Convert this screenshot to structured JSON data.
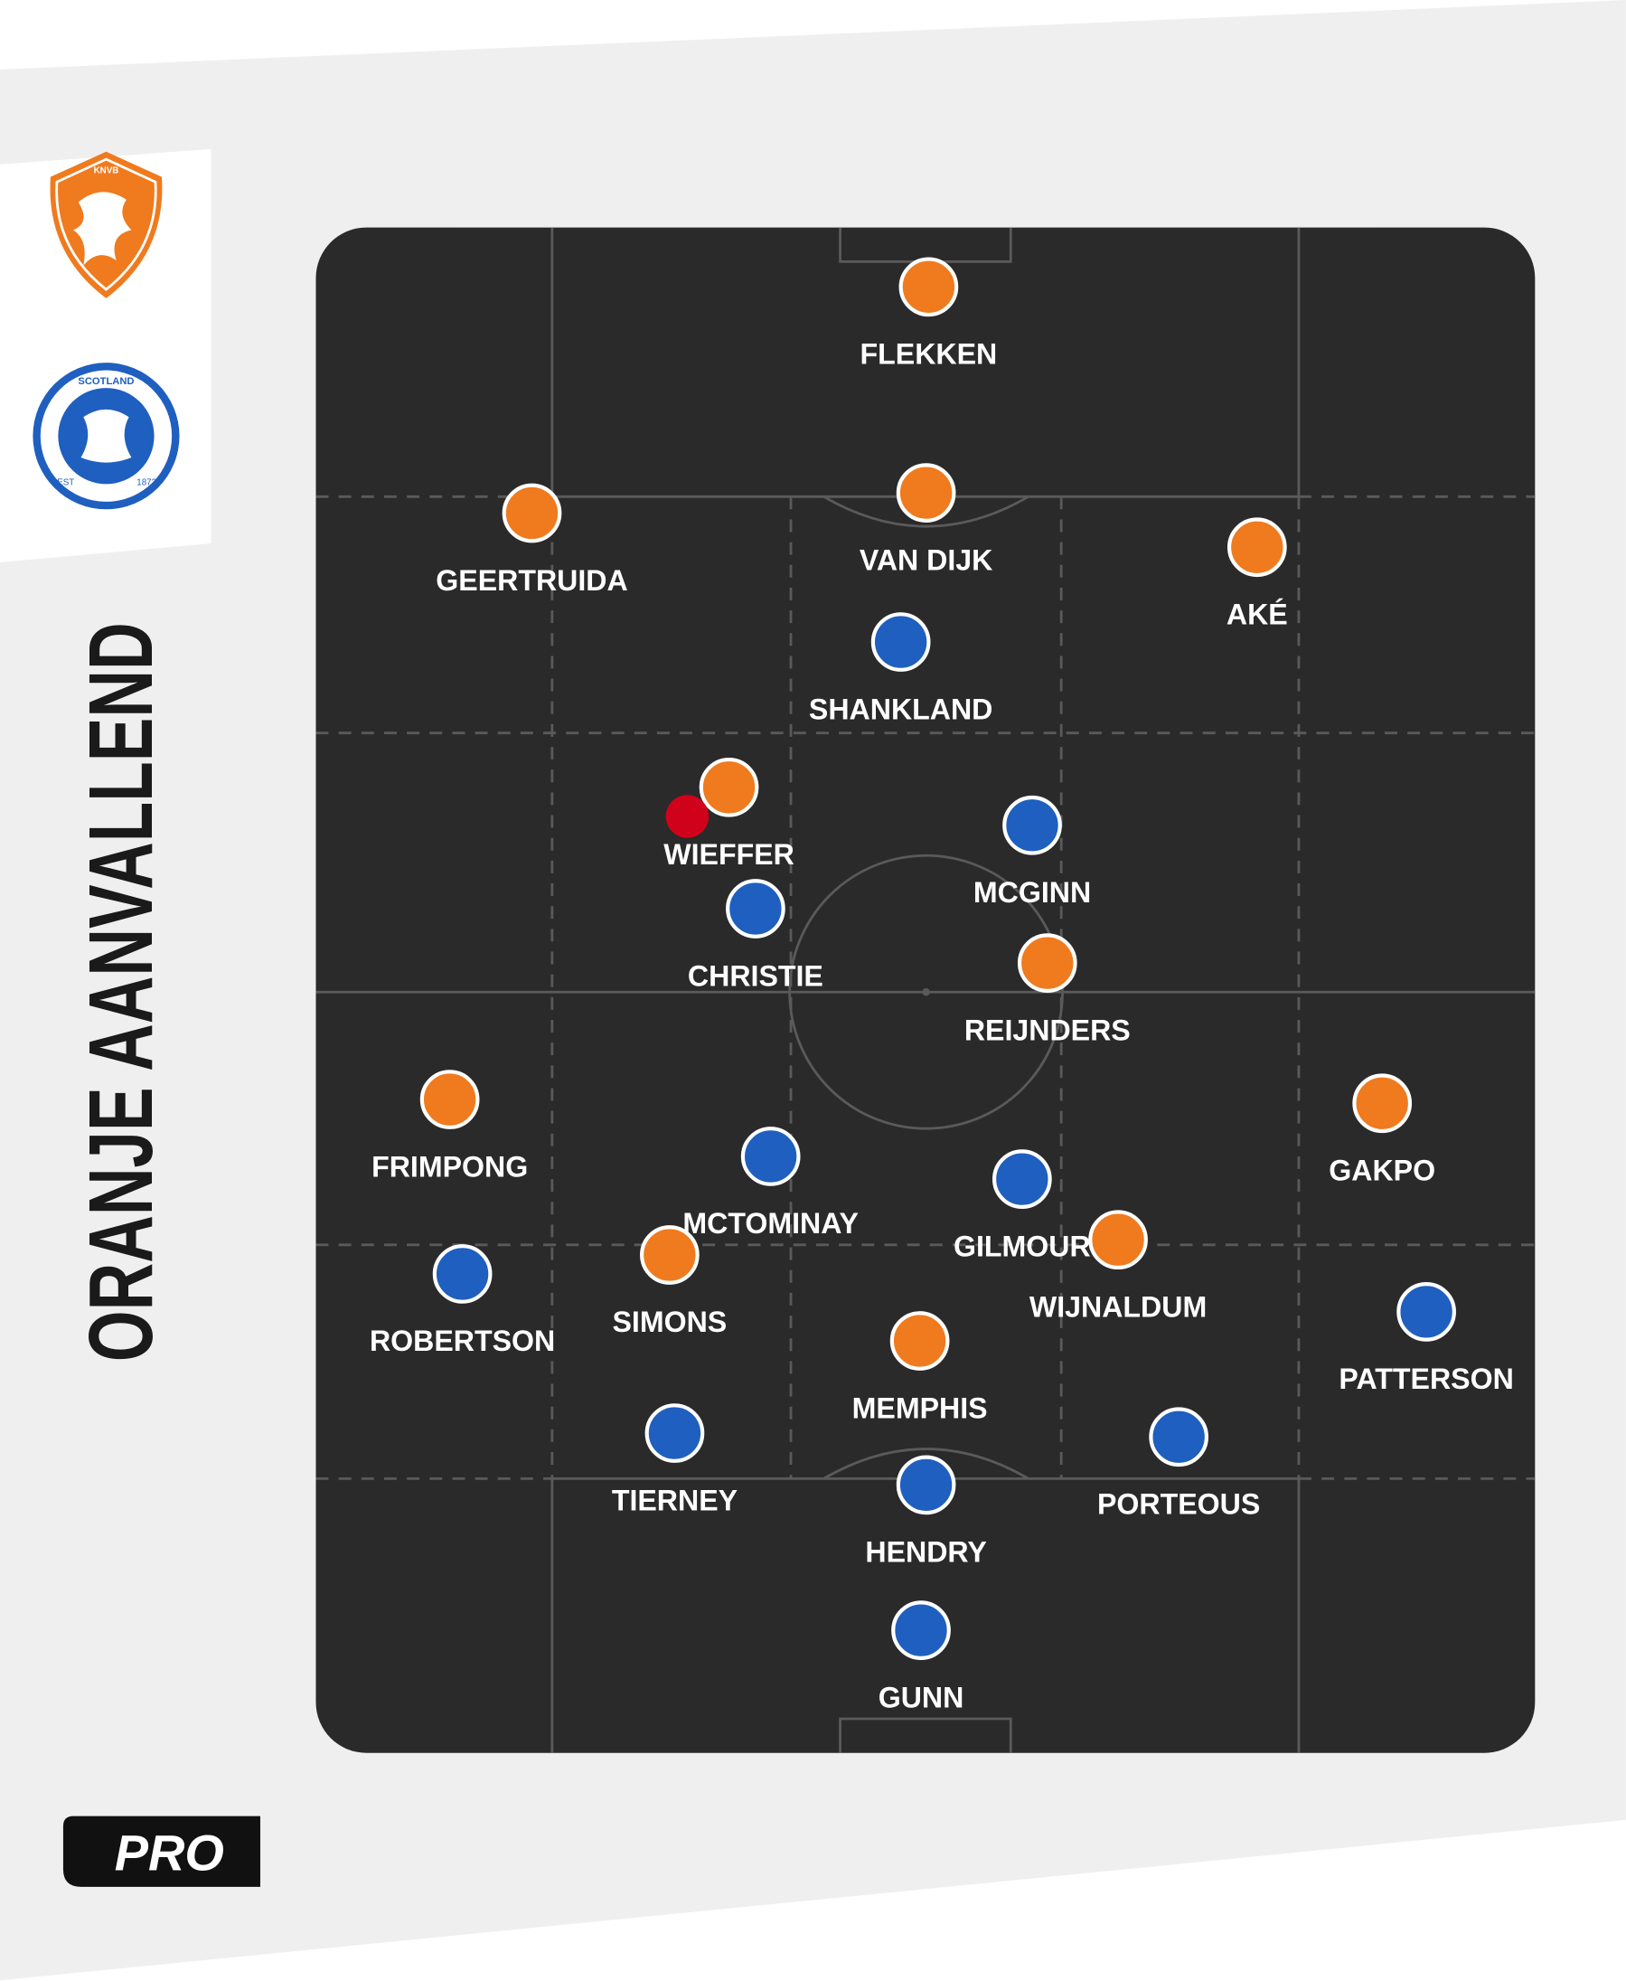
{
  "title": "ORANJE AANVALLEND",
  "badge": "PRO",
  "logos": {
    "knvb": "KNVB",
    "scotland": "SCOTLAND",
    "est": "EST",
    "year": "1873"
  },
  "players": {
    "orange": [
      "FLEKKEN",
      "VAN DIJK",
      "GEERTRUIDA",
      "AKÉ",
      "WIEFFER",
      "REIJNDERS",
      "FRIMPONG",
      "GAKPO",
      "SIMONS",
      "WIJNALDUM",
      "MEMPHIS"
    ],
    "blue": [
      "SHANKLAND",
      "MCGINN",
      "CHRISTIE",
      "MCTOMINAY",
      "GILMOUR",
      "ROBERTSON",
      "PATTERSON",
      "TIERNEY",
      "PORTEOUS",
      "HENDRY",
      "GUNN"
    ]
  }
}
